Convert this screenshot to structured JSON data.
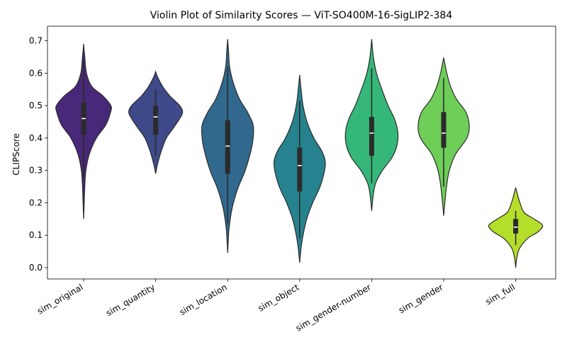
{
  "chart_data": {
    "type": "violin",
    "title": "Violin Plot of Similarity Scores — ViT-SO400M-16-SigLIP2-384",
    "xlabel": "",
    "ylabel": "CLIPScore",
    "ylim": [
      -0.035,
      0.745
    ],
    "yticks": [
      "0.0",
      "0.1",
      "0.2",
      "0.3",
      "0.4",
      "0.5",
      "0.6",
      "0.7"
    ],
    "grid": false,
    "categories": [
      "sim_original",
      "sim_quantity",
      "sim_location",
      "sim_object",
      "sim_gender-number",
      "sim_gender",
      "sim_full"
    ],
    "colors": [
      "#482878",
      "#3e4a89",
      "#31688e",
      "#26828e",
      "#35b779",
      "#6ece58",
      "#b5de2b"
    ],
    "violins": [
      {
        "category": "sim_original",
        "range": [
          0.15,
          0.69
        ],
        "q1": 0.41,
        "median": 0.46,
        "q3": 0.51,
        "whisker": [
          0.28,
          0.64
        ],
        "density": [
          [
            0.15,
            0.0
          ],
          [
            0.2,
            0.02
          ],
          [
            0.25,
            0.04
          ],
          [
            0.3,
            0.08
          ],
          [
            0.35,
            0.2
          ],
          [
            0.4,
            0.45
          ],
          [
            0.44,
            0.78
          ],
          [
            0.48,
            0.95
          ],
          [
            0.5,
            0.96
          ],
          [
            0.53,
            0.68
          ],
          [
            0.56,
            0.28
          ],
          [
            0.6,
            0.1
          ],
          [
            0.65,
            0.04
          ],
          [
            0.69,
            0.0
          ]
        ]
      },
      {
        "category": "sim_quantity",
        "range": [
          0.29,
          0.605
        ],
        "q1": 0.41,
        "median": 0.465,
        "q3": 0.5,
        "whisker": [
          0.345,
          0.55
        ],
        "density": [
          [
            0.29,
            0.0
          ],
          [
            0.32,
            0.07
          ],
          [
            0.36,
            0.2
          ],
          [
            0.4,
            0.38
          ],
          [
            0.43,
            0.62
          ],
          [
            0.46,
            0.85
          ],
          [
            0.48,
            0.95
          ],
          [
            0.5,
            0.85
          ],
          [
            0.53,
            0.5
          ],
          [
            0.56,
            0.24
          ],
          [
            0.59,
            0.06
          ],
          [
            0.605,
            0.0
          ]
        ]
      },
      {
        "category": "sim_location",
        "range": [
          0.045,
          0.705
        ],
        "q1": 0.29,
        "median": 0.375,
        "q3": 0.455,
        "whisker": [
          0.135,
          0.62
        ],
        "density": [
          [
            0.045,
            0.0
          ],
          [
            0.08,
            0.02
          ],
          [
            0.12,
            0.05
          ],
          [
            0.18,
            0.15
          ],
          [
            0.24,
            0.34
          ],
          [
            0.3,
            0.62
          ],
          [
            0.36,
            0.82
          ],
          [
            0.4,
            0.9
          ],
          [
            0.44,
            0.9
          ],
          [
            0.48,
            0.7
          ],
          [
            0.52,
            0.42
          ],
          [
            0.57,
            0.2
          ],
          [
            0.62,
            0.07
          ],
          [
            0.67,
            0.03
          ],
          [
            0.705,
            0.0
          ]
        ]
      },
      {
        "category": "sim_object",
        "range": [
          0.015,
          0.595
        ],
        "q1": 0.235,
        "median": 0.315,
        "q3": 0.37,
        "whisker": [
          0.09,
          0.515
        ],
        "density": [
          [
            0.015,
            0.0
          ],
          [
            0.06,
            0.05
          ],
          [
            0.1,
            0.12
          ],
          [
            0.15,
            0.25
          ],
          [
            0.2,
            0.46
          ],
          [
            0.25,
            0.72
          ],
          [
            0.3,
            0.88
          ],
          [
            0.33,
            0.9
          ],
          [
            0.36,
            0.78
          ],
          [
            0.4,
            0.5
          ],
          [
            0.45,
            0.26
          ],
          [
            0.5,
            0.12
          ],
          [
            0.55,
            0.05
          ],
          [
            0.595,
            0.0
          ]
        ]
      },
      {
        "category": "sim_gender-number",
        "range": [
          0.175,
          0.705
        ],
        "q1": 0.345,
        "median": 0.415,
        "q3": 0.465,
        "whisker": [
          0.26,
          0.615
        ],
        "density": [
          [
            0.175,
            0.0
          ],
          [
            0.22,
            0.05
          ],
          [
            0.26,
            0.14
          ],
          [
            0.3,
            0.38
          ],
          [
            0.34,
            0.72
          ],
          [
            0.38,
            0.9
          ],
          [
            0.42,
            0.92
          ],
          [
            0.46,
            0.8
          ],
          [
            0.5,
            0.58
          ],
          [
            0.55,
            0.36
          ],
          [
            0.6,
            0.17
          ],
          [
            0.65,
            0.06
          ],
          [
            0.705,
            0.0
          ]
        ]
      },
      {
        "category": "sim_gender",
        "range": [
          0.16,
          0.648
        ],
        "q1": 0.37,
        "median": 0.415,
        "q3": 0.48,
        "whisker": [
          0.25,
          0.585
        ],
        "density": [
          [
            0.16,
            0.0
          ],
          [
            0.2,
            0.04
          ],
          [
            0.25,
            0.1
          ],
          [
            0.3,
            0.2
          ],
          [
            0.35,
            0.42
          ],
          [
            0.4,
            0.82
          ],
          [
            0.44,
            0.9
          ],
          [
            0.48,
            0.78
          ],
          [
            0.52,
            0.45
          ],
          [
            0.56,
            0.24
          ],
          [
            0.6,
            0.11
          ],
          [
            0.648,
            0.0
          ]
        ]
      },
      {
        "category": "sim_full",
        "range": [
          0.0,
          0.247
        ],
        "q1": 0.105,
        "median": 0.125,
        "q3": 0.15,
        "whisker": [
          0.07,
          0.175
        ],
        "density": [
          [
            0.0,
            0.0
          ],
          [
            0.03,
            0.04
          ],
          [
            0.06,
            0.14
          ],
          [
            0.09,
            0.42
          ],
          [
            0.11,
            0.78
          ],
          [
            0.13,
            0.95
          ],
          [
            0.15,
            0.65
          ],
          [
            0.17,
            0.3
          ],
          [
            0.2,
            0.15
          ],
          [
            0.22,
            0.08
          ],
          [
            0.247,
            0.0
          ]
        ]
      }
    ]
  }
}
